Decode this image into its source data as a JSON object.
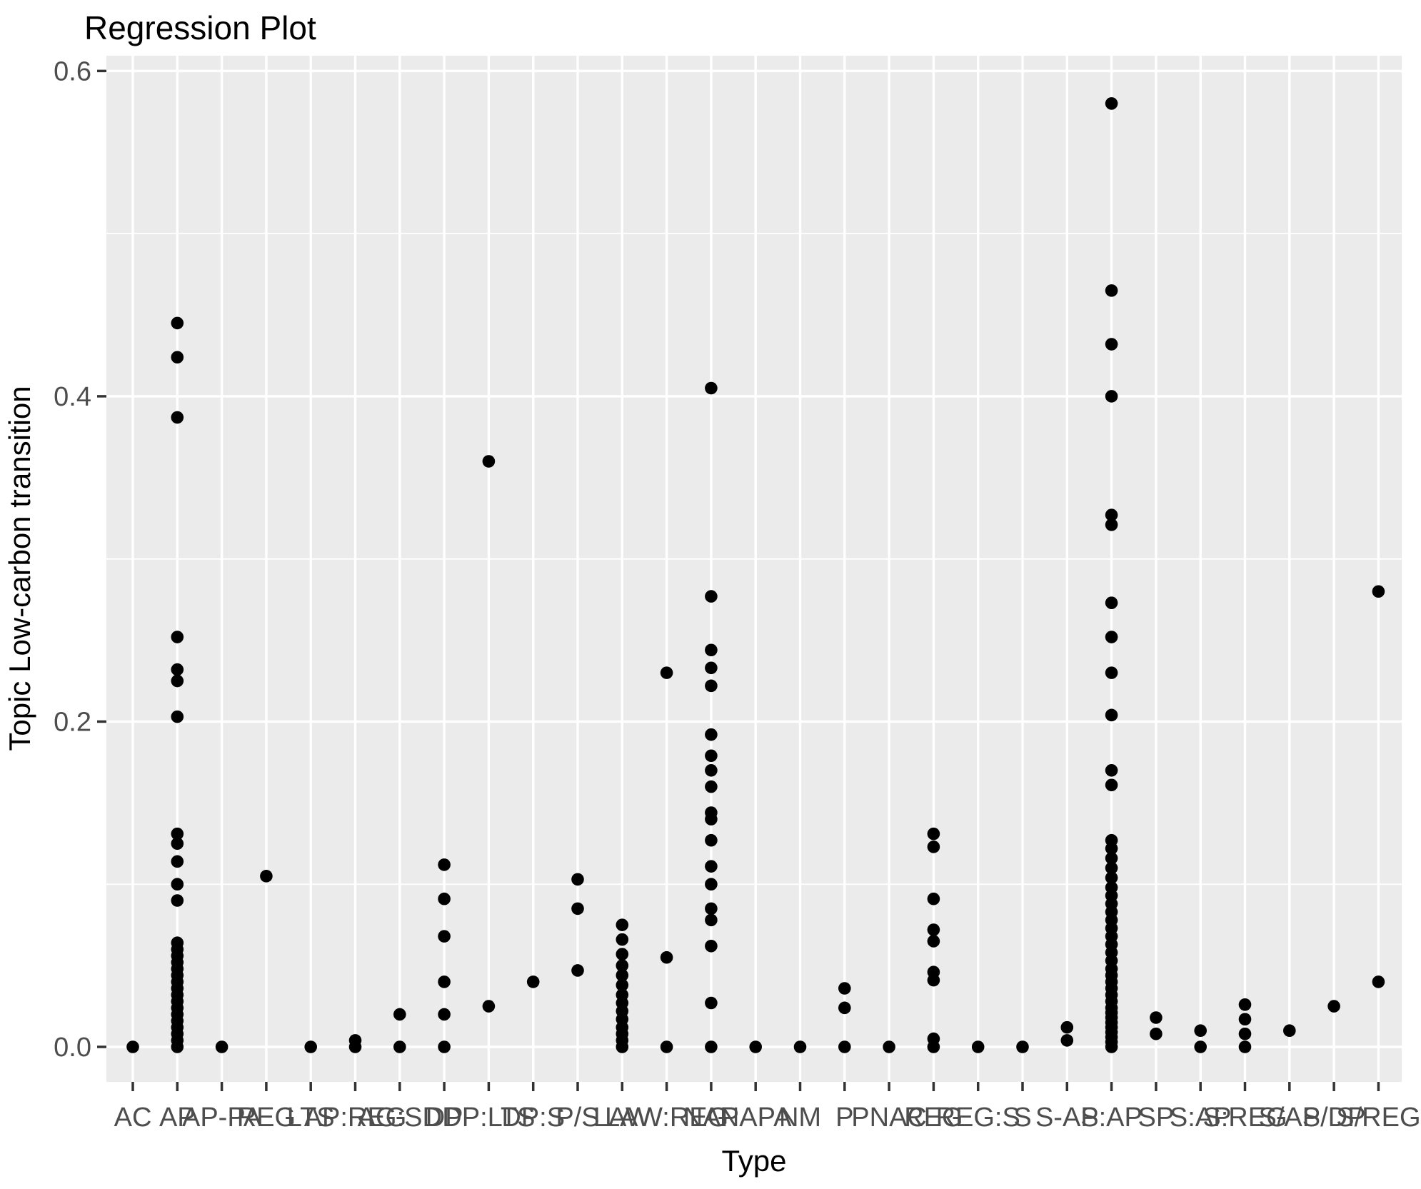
{
  "title": "Regression Plot",
  "colors": {
    "panel_bg": "#EBEBEB",
    "plot_bg": "#FFFFFF",
    "grid": "#FFFFFF",
    "point": "#000000",
    "axis_text": "#4D4D4D",
    "tick_mark": "#333333",
    "title_text": "#000000"
  },
  "chart_data": {
    "type": "scatter",
    "title": "Regression Plot",
    "xlabel": "Type",
    "ylabel": "Topic Low-carbon transition",
    "ylim": [
      0,
      0.6
    ],
    "y_major_ticks": [
      0.0,
      0.2,
      0.4,
      0.6
    ],
    "y_tick_labels": [
      "0.0",
      "0.2",
      "0.4",
      "0.6"
    ],
    "y_minor_ticks": [
      0.1,
      0.3,
      0.5
    ],
    "grid": true,
    "legend": false,
    "series": [
      {
        "label": "AC",
        "values": [
          0
        ]
      },
      {
        "label": "AP",
        "values": [
          0.445,
          0.424,
          0.387,
          0.252,
          0.232,
          0.225,
          0.203,
          0.131,
          0.125,
          0.114,
          0.1,
          0.09,
          0.064,
          0.06,
          0.056,
          0.052,
          0.048,
          0.044,
          0.04,
          0.036,
          0.032,
          0.028,
          0.024,
          0.02,
          0.016,
          0.012,
          0.008,
          0.004,
          0
        ]
      },
      {
        "label": "AP-PA",
        "values": [
          0
        ]
      },
      {
        "label": "REG",
        "values": [
          0.105
        ]
      },
      {
        "label": "LTS",
        "values": [
          0
        ]
      },
      {
        "label": "AP:REG",
        "values": [
          0,
          0.004
        ]
      },
      {
        "label": "AG:SD",
        "values": [
          0,
          0.02
        ]
      },
      {
        "label": "DP",
        "values": [
          0,
          0.02,
          0.04,
          0.068,
          0.091,
          0.112
        ]
      },
      {
        "label": "DP:LTS",
        "values": [
          0.025,
          0.36
        ]
      },
      {
        "label": "DP:S",
        "values": [
          0.04
        ]
      },
      {
        "label": "P/S",
        "values": [
          0.047,
          0.085,
          0.103
        ]
      },
      {
        "label": "LAW",
        "values": [
          0.075,
          0.066,
          0.057,
          0.05,
          0.044,
          0.038,
          0.032,
          0.027,
          0.022,
          0.017,
          0.012,
          0.008,
          0.004,
          0
        ]
      },
      {
        "label": "LAW:REG",
        "values": [
          0,
          0.055,
          0.23
        ]
      },
      {
        "label": "NAP",
        "values": [
          0.405,
          0.277,
          0.244,
          0.233,
          0.222,
          0.192,
          0.179,
          0.17,
          0.16,
          0.144,
          0.14,
          0.127,
          0.111,
          0.1,
          0.085,
          0.078,
          0.062,
          0.027,
          0
        ]
      },
      {
        "label": "NAPA",
        "values": [
          0
        ]
      },
      {
        "label": "NM",
        "values": [
          0
        ]
      },
      {
        "label": "P",
        "values": [
          0,
          0.024,
          0.036
        ]
      },
      {
        "label": "PNAC",
        "values": [
          0
        ]
      },
      {
        "label": "REG",
        "values": [
          0.131,
          0.123,
          0.091,
          0.072,
          0.065,
          0.046,
          0.041,
          0.005,
          0
        ]
      },
      {
        "label": "REG:S",
        "values": [
          0
        ]
      },
      {
        "label": "S",
        "values": [
          0
        ]
      },
      {
        "label": "S-AP",
        "values": [
          0.004,
          0.012
        ]
      },
      {
        "label": "S:AP",
        "values": [
          0.58,
          0.465,
          0.432,
          0.4,
          0.327,
          0.321,
          0.273,
          0.252,
          0.23,
          0.204,
          0.17,
          0.161,
          0.127,
          0.122,
          0.116,
          0.11,
          0.104,
          0.098,
          0.093,
          0.088,
          0.083,
          0.078,
          0.073,
          0.068,
          0.063,
          0.058,
          0.053,
          0.048,
          0.044,
          0.04,
          0.036,
          0.032,
          0.028,
          0.024,
          0.021,
          0.018,
          0.015,
          0.012,
          0.009,
          0.006,
          0.003,
          0
        ]
      },
      {
        "label": "SP",
        "values": [
          0.018,
          0.008
        ]
      },
      {
        "label": "S:AP",
        "values": [
          0,
          0.01
        ]
      },
      {
        "label": "S:REG",
        "values": [
          0,
          0.008,
          0.017,
          0.026
        ]
      },
      {
        "label": "S/AP",
        "values": [
          0.01
        ]
      },
      {
        "label": "S/DP",
        "values": [
          0.025
        ]
      },
      {
        "label": "S/REG",
        "values": [
          0.04,
          0.28
        ]
      }
    ]
  }
}
